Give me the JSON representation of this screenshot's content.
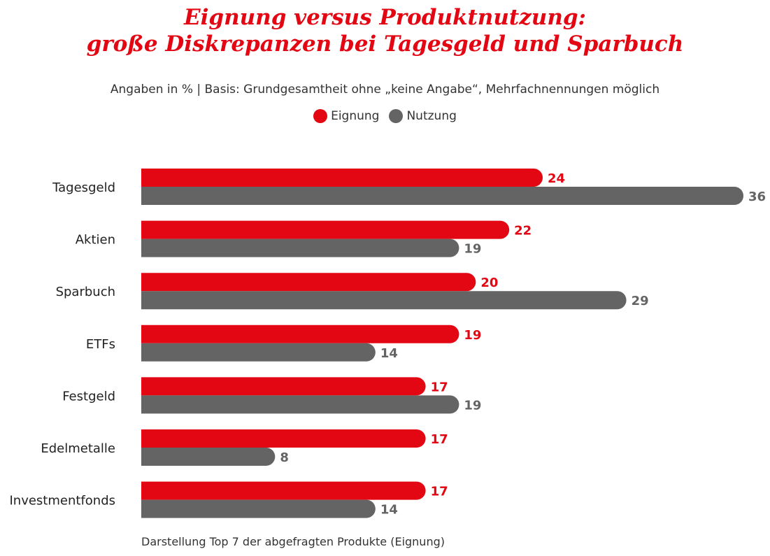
{
  "chart_data": {
    "type": "bar",
    "orientation": "horizontal",
    "title_line1": "Eignung versus Produktnutzung:",
    "title_line2": "große Diskrepanzen bei Tagesgeld und Sparbuch",
    "subtitle": "Angaben in % | Basis: Grundgesamtheit ohne „keine Angabe“, Mehrfachnennungen möglich",
    "footnote": "Darstellung Top 7 der abgefragten Produkte (Eignung)",
    "categories": [
      "Tagesgeld",
      "Aktien",
      "Sparbuch",
      "ETFs",
      "Festgeld",
      "Edelmetalle",
      "Investmentfonds"
    ],
    "series": [
      {
        "name": "Eignung",
        "color": "#e30613",
        "values": [
          24,
          22,
          20,
          19,
          17,
          17,
          17
        ]
      },
      {
        "name": "Nutzung",
        "color": "#636463",
        "values": [
          36,
          19,
          29,
          14,
          19,
          8,
          14
        ]
      }
    ],
    "xlim": [
      0,
      36
    ],
    "legend": "top-center",
    "grid": false
  }
}
